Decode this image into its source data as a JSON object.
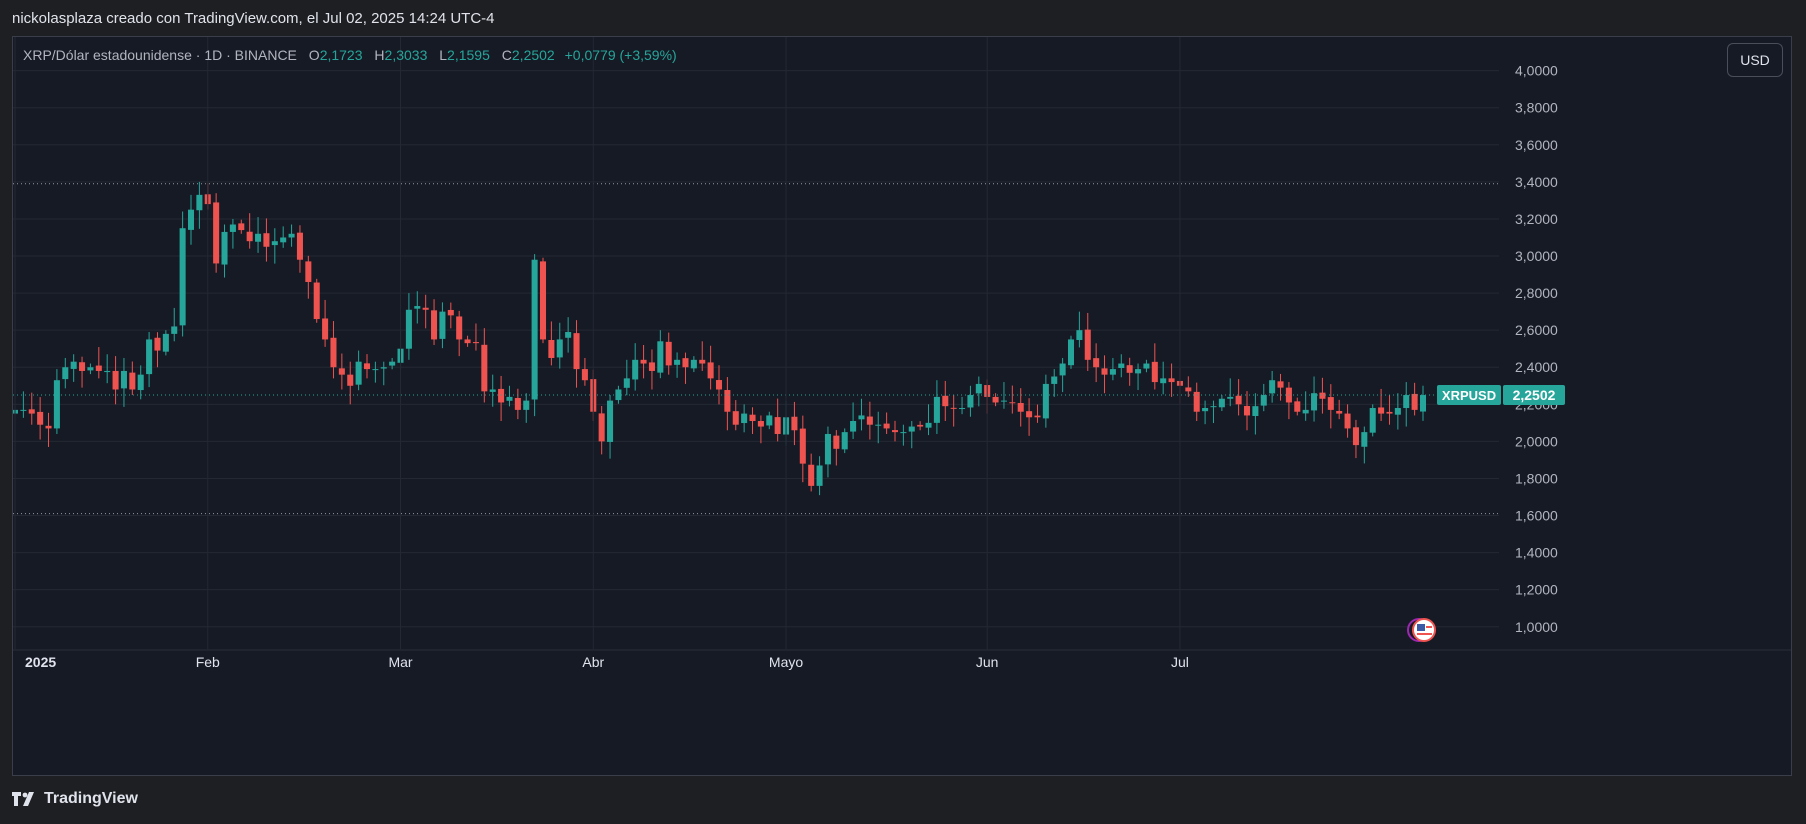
{
  "caption": "nickolasplaza creado con TradingView.com, el Jul 02, 2025 14:24 UTC-4",
  "brand": {
    "name": "TradingView",
    "icon": "tradingview-logo-icon"
  },
  "legend": {
    "symbol": "XRP/Dólar estadounidense · 1D · BINANCE",
    "o_label": "O",
    "o_value": "2,1723",
    "h_label": "H",
    "h_value": "2,3033",
    "l_label": "L",
    "l_value": "2,1595",
    "c_label": "C",
    "c_value": "2,2502",
    "change": "+0,0779 (+3,59%)"
  },
  "currency_button": "USD",
  "price_tag": {
    "symbol": "XRPUSD",
    "value": "2,2502",
    "color": "#26a69a"
  },
  "event_icon": "us-flag-icon",
  "colors": {
    "up": "#26a69a",
    "down": "#ef5350",
    "background": "#161a25",
    "grid": "#242833",
    "text": "#b2b5be"
  },
  "chart_data": {
    "type": "candlestick",
    "symbol": "XRPUSD",
    "interval": "1D",
    "exchange": "BINANCE",
    "ylim": [
      0.88,
      4.16
    ],
    "y_ticks": [
      "4,0000",
      "3,8000",
      "3,6000",
      "3,4000",
      "3,2000",
      "3,0000",
      "2,8000",
      "2,6000",
      "2,4000",
      "2,2000",
      "2,0000",
      "1,8000",
      "1,6000",
      "1,4000",
      "1,2000",
      "1,0000"
    ],
    "x_labels": [
      "2025",
      "Feb",
      "Mar",
      "Abr",
      "Mayo",
      "Jun",
      "Jul"
    ],
    "reference_lines": [
      3.39,
      1.61,
      2.25
    ],
    "current_price": 2.2502,
    "closes": [
      2.17,
      2.17,
      2.15,
      2.09,
      2.07,
      2.33,
      2.4,
      2.43,
      2.38,
      2.4,
      2.38,
      2.38,
      2.28,
      2.38,
      2.28,
      2.36,
      2.55,
      2.49,
      2.58,
      2.62,
      3.15,
      3.25,
      3.33,
      3.28,
      2.96,
      3.13,
      3.17,
      3.14,
      3.08,
      3.12,
      3.05,
      3.08,
      3.1,
      3.12,
      2.98,
      2.86,
      2.66,
      2.55,
      2.4,
      2.36,
      2.3,
      2.43,
      2.39,
      2.39,
      2.4,
      2.43,
      2.5,
      2.71,
      2.73,
      2.71,
      2.55,
      2.7,
      2.68,
      2.55,
      2.53,
      2.53,
      2.27,
      2.28,
      2.21,
      2.24,
      2.17,
      2.22,
      2.98,
      2.55,
      2.45,
      2.55,
      2.59,
      2.39,
      2.33,
      2.16,
      2.0,
      2.22,
      2.28,
      2.34,
      2.44,
      2.42,
      2.38,
      2.54,
      2.41,
      2.44,
      2.4,
      2.44,
      2.42,
      2.34,
      2.28,
      2.16,
      2.09,
      2.15,
      2.11,
      2.08,
      2.14,
      2.04,
      2.13,
      2.06,
      1.88,
      1.76,
      1.87,
      2.04,
      1.96,
      2.05,
      2.11,
      2.14,
      2.09,
      2.09,
      2.07,
      2.05,
      2.05,
      2.08,
      2.08,
      2.1,
      2.24,
      2.19,
      2.18,
      2.18,
      2.25,
      2.31,
      2.24,
      2.21,
      2.22,
      2.21,
      2.16,
      2.13,
      2.13,
      2.31,
      2.35,
      2.42,
      2.55,
      2.6,
      2.44,
      2.4,
      2.36,
      2.39,
      2.42,
      2.37,
      2.39,
      2.42,
      2.32,
      2.34,
      2.32,
      2.3,
      2.27,
      2.16,
      2.18,
      2.19,
      2.23,
      2.24,
      2.2,
      2.14,
      2.19,
      2.25,
      2.33,
      2.29,
      2.21,
      2.16,
      2.17,
      2.26,
      2.23,
      2.17,
      2.15,
      2.07,
      1.98,
      2.05,
      2.18,
      2.15,
      2.15,
      2.18,
      2.25,
      2.17,
      2.25
    ]
  }
}
